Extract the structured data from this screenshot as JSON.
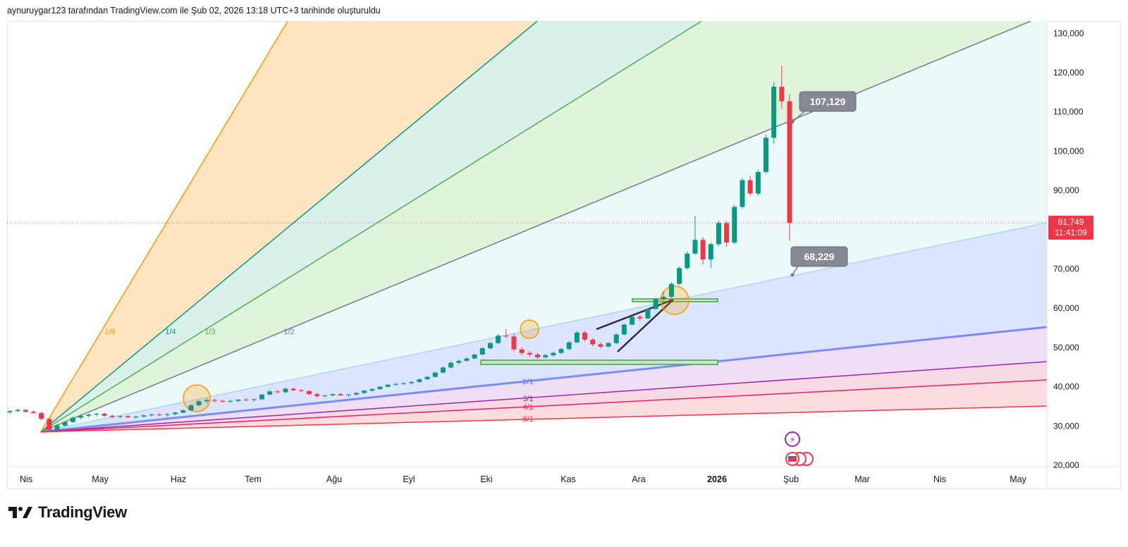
{
  "header": {
    "text": "aynuruygar123 tarafından TradingView.com ile Şub 02, 2026 13:18 UTC+3 tarihinde oluşturuldu"
  },
  "footer": {
    "brand": "TradingView"
  },
  "chart_data": {
    "type": "candlestick",
    "y_axis": {
      "ticks": [
        "130,000",
        "120,000",
        "110,000",
        "100,000",
        "90,000",
        "80,000",
        "70,000",
        "60,000",
        "50,000",
        "40,000",
        "30,000",
        "20,000"
      ],
      "values": [
        130000,
        120000,
        110000,
        100000,
        90000,
        80000,
        70000,
        60000,
        50000,
        40000,
        30000,
        20000
      ],
      "ylim": [
        17500,
        135000
      ]
    },
    "x_axis": {
      "ticks": [
        "Nis",
        "May",
        "Haz",
        "Tem",
        "Ağu",
        "Eyl",
        "Eki",
        "Kas",
        "Ara",
        "2026",
        "Şub",
        "Mar",
        "Nis",
        "May"
      ]
    },
    "price_label": {
      "value": "81,749",
      "timer": "11:41:09",
      "price": 81749,
      "color": "#f23645"
    },
    "callouts": [
      {
        "text": "107,129",
        "price": 107129
      },
      {
        "text": "68,229",
        "price": 68229
      }
    ],
    "gann_fan": {
      "anchor_price": 28500,
      "labels": [
        "1/8",
        "1/4",
        "1/3",
        "1/2",
        "2/1",
        "3/1",
        "4/1",
        "8/1"
      ],
      "colors": [
        "#ff9800",
        "#089981",
        "#4caf50",
        "#787b86",
        "#5b7cff",
        "#9c27b0",
        "#e91e63",
        "#f23645"
      ]
    },
    "candles": [
      [
        33500,
        34000,
        33000,
        33800
      ],
      [
        33800,
        34400,
        33500,
        34100
      ],
      [
        34100,
        34300,
        33400,
        33600
      ],
      [
        33600,
        34000,
        33200,
        33300
      ],
      [
        33300,
        33600,
        31500,
        31800
      ],
      [
        31800,
        32000,
        28500,
        29000
      ],
      [
        29000,
        30500,
        28300,
        30100
      ],
      [
        30100,
        31200,
        29800,
        31000
      ],
      [
        31000,
        32400,
        30800,
        32100
      ],
      [
        32100,
        33000,
        31700,
        32600
      ],
      [
        32600,
        33200,
        32200,
        32900
      ],
      [
        32900,
        33400,
        32500,
        33100
      ],
      [
        33100,
        33400,
        32400,
        32600
      ],
      [
        32600,
        32900,
        32000,
        32300
      ],
      [
        32300,
        32700,
        31900,
        32500
      ],
      [
        32500,
        32800,
        32000,
        32200
      ],
      [
        32200,
        32600,
        31800,
        32400
      ],
      [
        32400,
        32900,
        32100,
        32700
      ],
      [
        32700,
        33100,
        32400,
        32900
      ],
      [
        32900,
        33300,
        32500,
        32800
      ],
      [
        32800,
        33200,
        32400,
        33000
      ],
      [
        33000,
        33600,
        32700,
        33400
      ],
      [
        33400,
        34200,
        33200,
        34000
      ],
      [
        34000,
        35500,
        33800,
        35300
      ],
      [
        35300,
        36600,
        35000,
        36300
      ],
      [
        36300,
        37000,
        35800,
        36600
      ],
      [
        36600,
        37000,
        36000,
        36400
      ],
      [
        36400,
        36700,
        35900,
        36200
      ],
      [
        36200,
        36600,
        35800,
        36400
      ],
      [
        36400,
        36900,
        36000,
        36700
      ],
      [
        36700,
        37100,
        36300,
        36600
      ],
      [
        36600,
        37000,
        36200,
        36800
      ],
      [
        36800,
        38200,
        36600,
        38000
      ],
      [
        38000,
        39200,
        37700,
        38800
      ],
      [
        38800,
        39300,
        38300,
        38600
      ],
      [
        38600,
        39800,
        38400,
        39500
      ],
      [
        39500,
        39800,
        38900,
        39100
      ],
      [
        39100,
        39400,
        38600,
        38900
      ],
      [
        38900,
        39000,
        37800,
        38100
      ],
      [
        38100,
        38500,
        37200,
        37600
      ],
      [
        37600,
        38000,
        37300,
        37800
      ],
      [
        37800,
        38300,
        37500,
        38100
      ],
      [
        38100,
        38400,
        37600,
        37800
      ],
      [
        37800,
        38200,
        37400,
        38000
      ],
      [
        38000,
        38600,
        37800,
        38400
      ],
      [
        38400,
        39200,
        38200,
        39000
      ],
      [
        39000,
        39600,
        38700,
        39400
      ],
      [
        39400,
        40200,
        39200,
        40000
      ],
      [
        40000,
        40700,
        39800,
        40500
      ],
      [
        40500,
        41000,
        40200,
        40700
      ],
      [
        40700,
        41200,
        40400,
        40900
      ],
      [
        40900,
        41400,
        40600,
        41200
      ],
      [
        41200,
        42100,
        41000,
        41900
      ],
      [
        41900,
        42700,
        41700,
        42500
      ],
      [
        42500,
        43800,
        42300,
        43600
      ],
      [
        43600,
        45100,
        43400,
        44900
      ],
      [
        44900,
        46400,
        44600,
        46100
      ],
      [
        46100,
        46900,
        45700,
        46600
      ],
      [
        46600,
        47500,
        46300,
        47200
      ],
      [
        47200,
        48500,
        47000,
        48200
      ],
      [
        48200,
        50100,
        48000,
        49800
      ],
      [
        49800,
        51400,
        49500,
        51100
      ],
      [
        51100,
        53400,
        50800,
        53000
      ],
      [
        53000,
        54700,
        52400,
        52800
      ],
      [
        52800,
        53600,
        49000,
        49500
      ],
      [
        49500,
        50100,
        48000,
        48600
      ],
      [
        48600,
        49100,
        47600,
        48200
      ],
      [
        48200,
        48600,
        47100,
        47500
      ],
      [
        47500,
        48300,
        47200,
        48000
      ],
      [
        48000,
        48900,
        47700,
        48600
      ],
      [
        48600,
        49900,
        48300,
        49600
      ],
      [
        49600,
        51600,
        49300,
        51300
      ],
      [
        51300,
        54100,
        51100,
        53800
      ],
      [
        53800,
        54200,
        51500,
        52000
      ],
      [
        52000,
        52400,
        50300,
        50800
      ],
      [
        50800,
        51300,
        49800,
        50200
      ],
      [
        50200,
        51400,
        50000,
        51100
      ],
      [
        51100,
        53600,
        50900,
        53300
      ],
      [
        53300,
        56100,
        53100,
        55800
      ],
      [
        55800,
        58100,
        55600,
        57800
      ],
      [
        57800,
        58300,
        56800,
        57400
      ],
      [
        57400,
        60100,
        57200,
        59800
      ],
      [
        59800,
        62600,
        59600,
        62300
      ],
      [
        62300,
        64300,
        61800,
        62900
      ],
      [
        62900,
        66600,
        62700,
        66200
      ],
      [
        66200,
        70600,
        65900,
        70200
      ],
      [
        70200,
        74400,
        69800,
        73900
      ],
      [
        73900,
        83500,
        73600,
        77400
      ],
      [
        77400,
        78100,
        71200,
        72400
      ],
      [
        72400,
        76800,
        70300,
        76300
      ],
      [
        76300,
        82300,
        75800,
        81700
      ],
      [
        81700,
        82300,
        75600,
        76700
      ],
      [
        76700,
        86300,
        76300,
        85800
      ],
      [
        85800,
        93200,
        85300,
        92600
      ],
      [
        92600,
        93700,
        88600,
        89200
      ],
      [
        89200,
        95300,
        88700,
        94700
      ],
      [
        94700,
        104200,
        94200,
        103400
      ],
      [
        103400,
        117600,
        101800,
        116400
      ],
      [
        116400,
        121800,
        110800,
        112700
      ],
      [
        112700,
        114400,
        77300,
        81700
      ]
    ]
  }
}
